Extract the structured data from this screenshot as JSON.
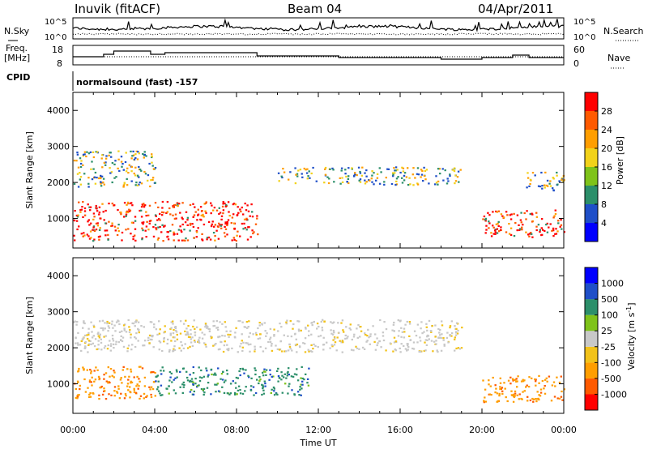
{
  "header": {
    "site": "Inuvik (fitACF)",
    "beam": "Beam 04",
    "date": "04/Apr/2011"
  },
  "noise_panel": {
    "left_label": "N.Sky",
    "right_label": "N.Search",
    "left_ticks": [
      "10^5",
      "10^0"
    ],
    "right_ticks": [
      "10^5",
      "10^0"
    ]
  },
  "freq_panel": {
    "left_label_1": "Freq.",
    "left_label_2": "[MHz]",
    "right_label": "Nave",
    "left_ticks": [
      "18",
      "8"
    ],
    "right_ticks": [
      "60",
      "0"
    ]
  },
  "cpid_panel": {
    "label": "CPID",
    "text": "normalsound (fast) -157"
  },
  "x_axis": {
    "label": "Time UT",
    "ticks": [
      "00:00",
      "04:00",
      "08:00",
      "12:00",
      "16:00",
      "20:00",
      "00:00"
    ]
  },
  "chart_data": [
    {
      "type": "heatmap",
      "title": "",
      "ylabel": "Slant Range [km]",
      "xlabel": "",
      "ylim": [
        180,
        4500
      ],
      "y_ticks": [
        "1000",
        "2000",
        "3000",
        "4000"
      ],
      "colorbar": {
        "label": "Power [dB]",
        "ticks": [
          "28",
          "24",
          "20",
          "16",
          "12",
          "8",
          "4"
        ],
        "colors": [
          "#0000ff",
          "#1f4fc8",
          "#2c8f6a",
          "#7fc31a",
          "#f2d21a",
          "#ff9e00",
          "#ff5a00",
          "#ff0000"
        ]
      },
      "scatter_bands": [
        {
          "t0": 0.0,
          "t1": 9.0,
          "r0": 400,
          "r1": 1500,
          "level": "high"
        },
        {
          "t0": 0.0,
          "t1": 4.0,
          "r0": 1900,
          "r1": 2900,
          "level": "mid"
        },
        {
          "t0": 10.0,
          "t1": 19.0,
          "r0": 1950,
          "r1": 2450,
          "level": "mid"
        },
        {
          "t0": 20.0,
          "t1": 24.0,
          "r0": 500,
          "r1": 1250,
          "level": "high"
        },
        {
          "t0": 22.0,
          "t1": 24.0,
          "r0": 1800,
          "r1": 2300,
          "level": "mid"
        }
      ]
    },
    {
      "type": "heatmap",
      "title": "",
      "ylabel": "Slant Range [km]",
      "xlabel": "",
      "ylim": [
        180,
        4500
      ],
      "y_ticks": [
        "1000",
        "2000",
        "3000",
        "4000"
      ],
      "colorbar": {
        "label": "Velocity [m s^-1]",
        "ticks": [
          "1000",
          "500",
          "100",
          "25",
          "-25",
          "-100",
          "-500",
          "-1000"
        ],
        "colors": [
          "#ff0000",
          "#ff5a00",
          "#ff9e00",
          "#f2c21a",
          "#c8c8c8",
          "#7fc31a",
          "#2c8f6a",
          "#1f4fc8",
          "#0000ff"
        ]
      },
      "scatter_bands": [
        {
          "t0": 0.0,
          "t1": 4.0,
          "r0": 600,
          "r1": 1500,
          "level": "negative"
        },
        {
          "t0": 4.0,
          "t1": 11.5,
          "r0": 700,
          "r1": 1500,
          "level": "positive"
        },
        {
          "t0": 0.0,
          "t1": 19.0,
          "r0": 1900,
          "r1": 2800,
          "level": "ground"
        },
        {
          "t0": 20.0,
          "t1": 24.0,
          "r0": 500,
          "r1": 1250,
          "level": "negative"
        }
      ]
    }
  ]
}
